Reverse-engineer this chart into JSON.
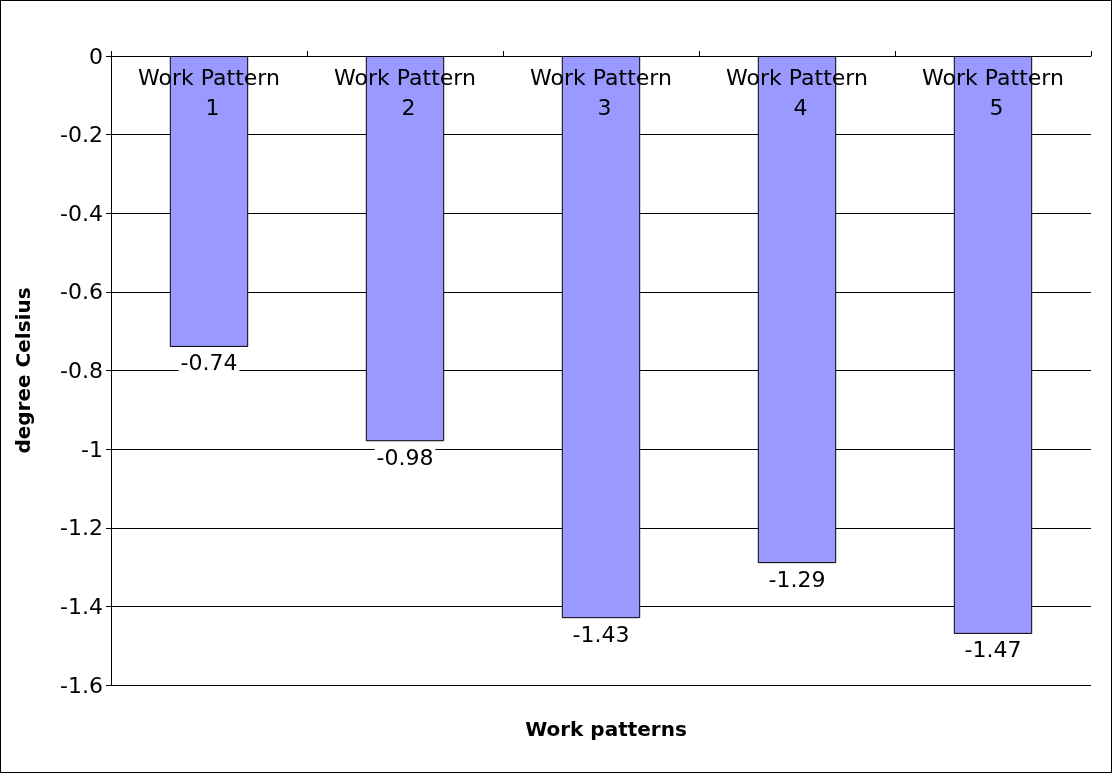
{
  "chart_data": {
    "type": "bar",
    "xlabel": "Work patterns",
    "ylabel": "degree Celsius",
    "categories": [
      "Work Pattern 1",
      "Work Pattern 2",
      "Work Pattern 3",
      "Work Pattern 4",
      "Work Pattern 5"
    ],
    "values": [
      -0.74,
      -0.98,
      -1.43,
      -1.29,
      -1.47
    ],
    "color": "#9999ff",
    "ylim": [
      -1.6,
      0
    ],
    "yticks": [
      -1.6,
      -1.4,
      -1.2,
      -1,
      -0.8,
      -0.6,
      -0.4,
      -0.2,
      0
    ],
    "grid": "y",
    "data_labels": true
  }
}
